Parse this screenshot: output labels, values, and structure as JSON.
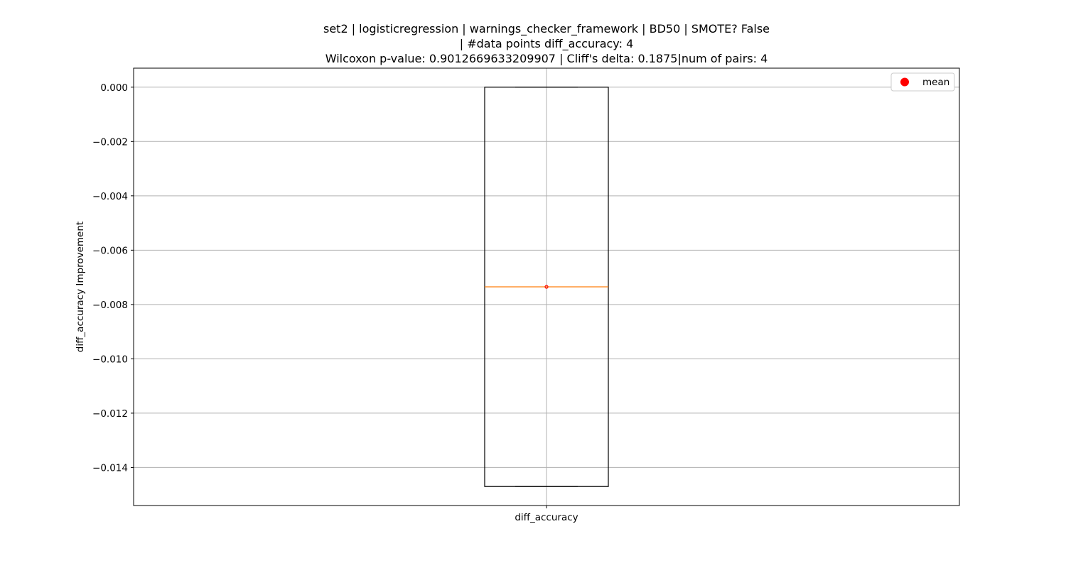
{
  "chart_data": {
    "type": "box",
    "title_lines": [
      "set2 | logisticregression | warnings_checker_framework | BD50 | SMOTE? False",
      "| #data points diff_accuracy: 4",
      "Wilcoxon p-value: 0.9012669633209907 | Cliff's delta: 0.1875|num of pairs: 4"
    ],
    "xlabel": "",
    "ylabel": "diff_accuracy Improvement",
    "categories": [
      "diff_accuracy"
    ],
    "ylim": [
      -0.0154,
      0.0007
    ],
    "yticks": [
      0.0,
      -0.002,
      -0.004,
      -0.006,
      -0.008,
      -0.01,
      -0.012,
      -0.014
    ],
    "ytick_labels": [
      "0.000",
      "−0.002",
      "−0.004",
      "−0.006",
      "−0.008",
      "−0.010",
      "−0.012",
      "−0.014"
    ],
    "grid": true,
    "legend": {
      "placement": "upper right",
      "entries": [
        {
          "label": "mean",
          "color": "#ff0000",
          "marker": "circle"
        }
      ]
    },
    "boxes": [
      {
        "category": "diff_accuracy",
        "whisker_low": -0.0147,
        "q1": -0.0147,
        "median": -0.00735,
        "q3": 0.0,
        "whisker_high": 0.0,
        "mean": -0.00735
      }
    ],
    "colors": {
      "box": "#000000",
      "median": "#ff7f0e",
      "mean": "#ff0000",
      "grid": "#b0b0b0"
    }
  }
}
